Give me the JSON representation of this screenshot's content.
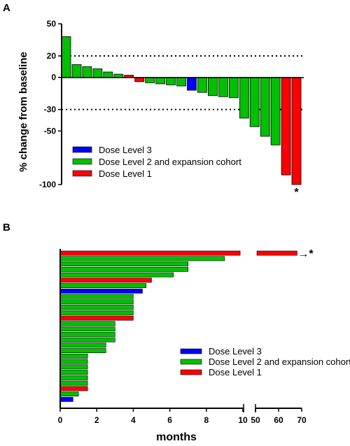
{
  "colors": {
    "dose_level_1": "#ff0000",
    "dose_level_2": "#00c000",
    "dose_level_3": "#0000ff"
  },
  "legend": [
    {
      "key": "dose_level_3",
      "label": "Dose Level 3"
    },
    {
      "key": "dose_level_2",
      "label": "Dose Level 2 and expansion cohort"
    },
    {
      "key": "dose_level_1",
      "label": "Dose Level 1"
    }
  ],
  "chart_data": [
    {
      "panel": "A",
      "type": "bar",
      "ylabel": "% change from baseline",
      "xlabel": "",
      "ylim": [
        -100,
        50
      ],
      "yticks": [
        50,
        20,
        0,
        -30,
        -50,
        -100
      ],
      "reference_lines": [
        20,
        -30
      ],
      "reference_line_style": "dotted",
      "legend_placement": "bottom-left",
      "values": [
        38,
        12,
        10,
        8,
        5,
        3,
        2,
        -4,
        -5,
        -6,
        -7,
        -8,
        -12,
        -14,
        -17,
        -18,
        -19,
        -38,
        -46,
        -55,
        -63,
        -91,
        -100
      ],
      "dose_levels": [
        2,
        2,
        2,
        2,
        2,
        2,
        1,
        1,
        2,
        2,
        2,
        2,
        3,
        2,
        2,
        2,
        2,
        2,
        2,
        2,
        2,
        1,
        1
      ],
      "annotations": [
        {
          "bar_index": 22,
          "text": "*"
        }
      ]
    },
    {
      "panel": "B",
      "type": "bar",
      "orientation": "horizontal",
      "xlabel": "months",
      "ylabel": "",
      "xticks": [
        "0",
        "2",
        "4",
        "6",
        "8",
        "10",
        "50",
        "60",
        "70"
      ],
      "axis_break": [
        10,
        50
      ],
      "legend_placement": "bottom-right",
      "values": [
        68,
        9,
        7,
        7,
        6.2,
        5,
        4.7,
        4.5,
        4,
        4,
        4,
        4,
        4,
        3,
        3,
        3,
        3,
        2.5,
        2.5,
        1.5,
        1.5,
        1.5,
        1.5,
        1.5,
        1.5,
        1.5,
        1,
        0.7
      ],
      "dose_levels": [
        1,
        2,
        2,
        2,
        2,
        1,
        2,
        3,
        2,
        2,
        2,
        2,
        1,
        2,
        2,
        2,
        2,
        2,
        2,
        2,
        2,
        2,
        2,
        2,
        2,
        1,
        2,
        3
      ],
      "annotations": [
        {
          "bar_index": 0,
          "text": "→*"
        }
      ]
    }
  ]
}
